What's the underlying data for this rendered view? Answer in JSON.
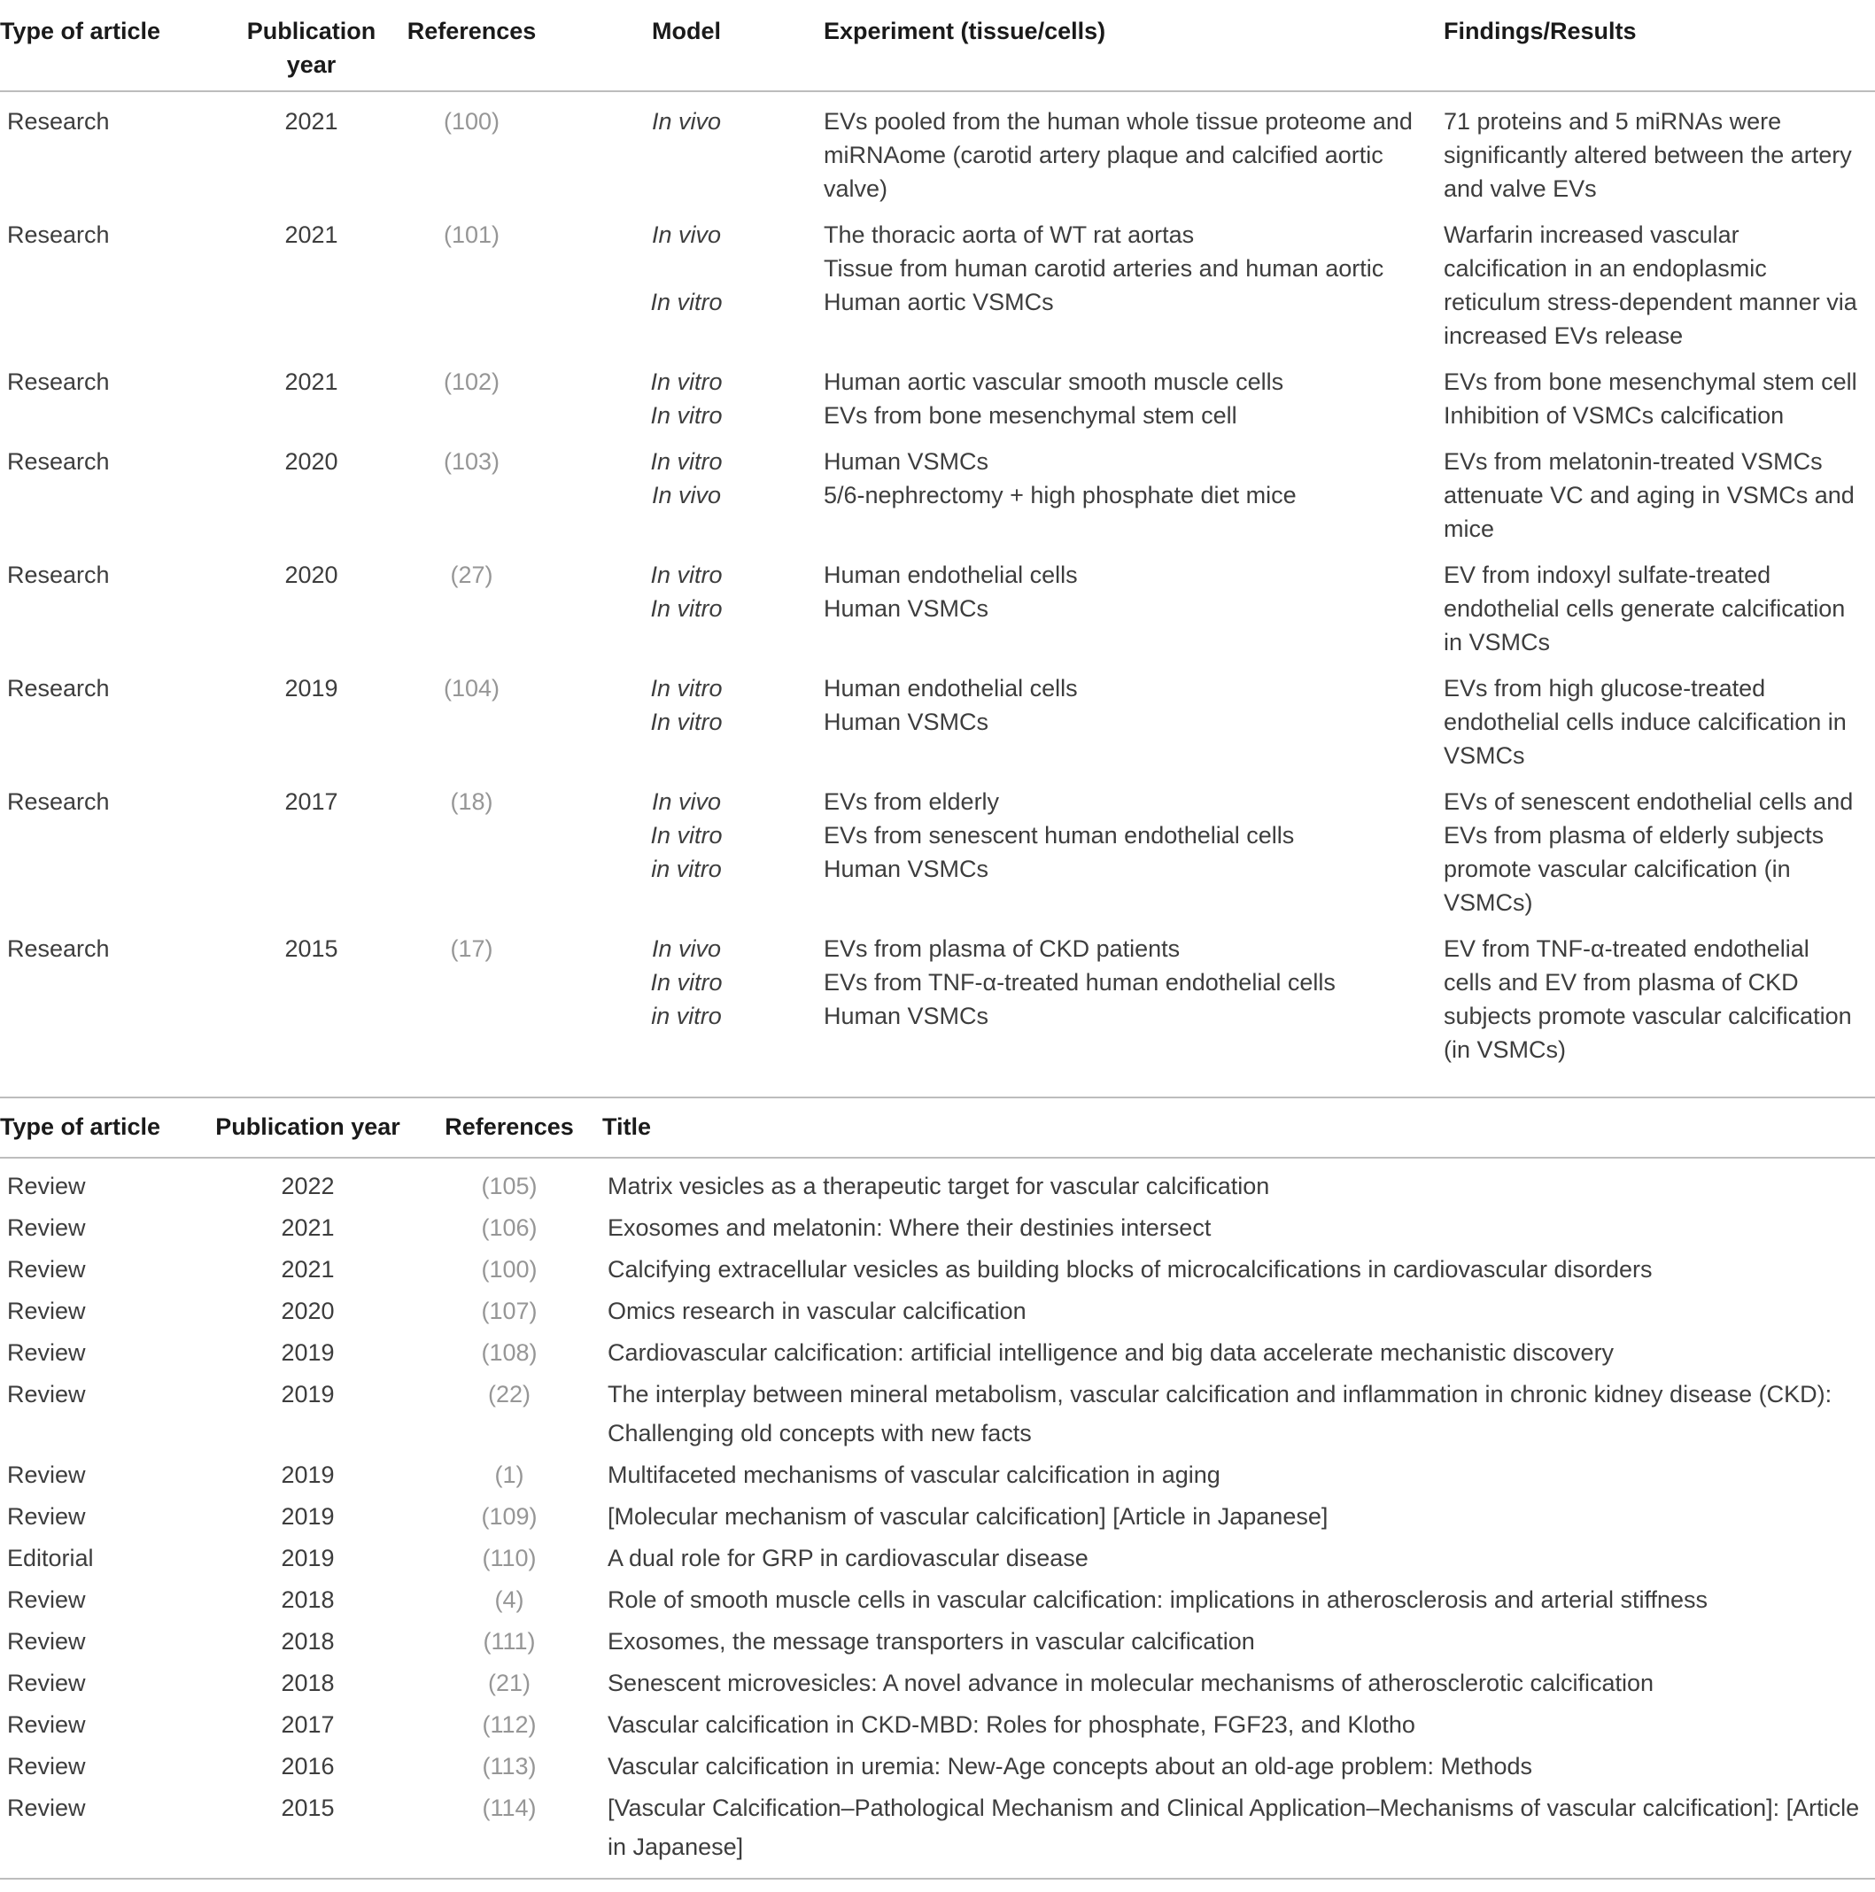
{
  "table1": {
    "headers": {
      "type": "Type of article",
      "year": "Publication year",
      "references": "References",
      "model": "Model",
      "experiment": "Experiment (tissue/cells)",
      "findings": "Findings/Results"
    },
    "rows": [
      {
        "type": "Research",
        "year": "2021",
        "references": "(100)",
        "model_lines": [
          "In vivo"
        ],
        "experiment_lines": [
          "EVs pooled from the human whole tissue proteome and miRNAome (carotid artery plaque and calcified aortic valve)"
        ],
        "findings_lines": [
          "71 proteins and 5 miRNAs were significantly altered between the artery and valve EVs"
        ]
      },
      {
        "type": "Research",
        "year": "2021",
        "references": "(101)",
        "model_lines": [
          "In vivo",
          "",
          "In vitro"
        ],
        "experiment_lines": [
          "The thoracic aorta of WT rat aortas",
          "Tissue from human carotid arteries and human aortic",
          "Human aortic VSMCs"
        ],
        "findings_lines": [
          "Warfarin increased vascular calcification in an endoplasmic reticulum stress-dependent manner via increased EVs release"
        ]
      },
      {
        "type": "Research",
        "year": "2021",
        "references": "(102)",
        "model_lines": [
          "In vitro",
          "In vitro"
        ],
        "experiment_lines": [
          "Human aortic vascular smooth muscle cells",
          "EVs from bone mesenchymal stem cell"
        ],
        "findings_lines": [
          "EVs from bone mesenchymal stem cell",
          "Inhibition of VSMCs calcification"
        ]
      },
      {
        "type": "Research",
        "year": "2020",
        "references": "(103)",
        "model_lines": [
          "In vitro",
          "In vivo"
        ],
        "experiment_lines": [
          "Human VSMCs",
          "5/6-nephrectomy + high phosphate diet mice"
        ],
        "findings_lines": [
          "EVs from melatonin-treated VSMCs attenuate VC and aging in VSMCs and mice"
        ]
      },
      {
        "type": "Research",
        "year": "2020",
        "references": "(27)",
        "model_lines": [
          "In vitro",
          "In vitro"
        ],
        "experiment_lines": [
          "Human endothelial cells",
          "Human VSMCs"
        ],
        "findings_lines": [
          "EV from indoxyl sulfate-treated endothelial cells generate calcification in VSMCs"
        ]
      },
      {
        "type": "Research",
        "year": "2019",
        "references": "(104)",
        "model_lines": [
          "In vitro",
          "In vitro"
        ],
        "experiment_lines": [
          "Human endothelial cells",
          "Human VSMCs"
        ],
        "findings_lines": [
          "EVs from high glucose-treated endothelial cells induce calcification in VSMCs"
        ]
      },
      {
        "type": "Research",
        "year": "2017",
        "references": "(18)",
        "model_lines": [
          "In vivo",
          "In vitro",
          "in vitro"
        ],
        "experiment_lines": [
          "EVs from elderly",
          "EVs from senescent human endothelial cells",
          "Human VSMCs"
        ],
        "findings_lines": [
          "EVs of senescent endothelial cells and EVs from plasma of elderly subjects promote vascular calcification (in VSMCs)"
        ]
      },
      {
        "type": "Research",
        "year": "2015",
        "references": "(17)",
        "model_lines": [
          "In vivo",
          "In vitro",
          "in vitro"
        ],
        "experiment_lines": [
          "EVs from plasma of CKD patients",
          "EVs from TNF-α-treated human endothelial cells",
          "Human VSMCs"
        ],
        "findings_lines": [
          "EV from TNF-α-treated endothelial cells and EV from plasma of CKD subjects promote vascular calcification (in VSMCs)"
        ]
      }
    ]
  },
  "table2": {
    "headers": {
      "type": "Type of article",
      "year": "Publication year",
      "references": "References",
      "title": "Title"
    },
    "rows": [
      {
        "type": "Review",
        "year": "2022",
        "references": "(105)",
        "title": "Matrix vesicles as a therapeutic target for vascular calcification"
      },
      {
        "type": "Review",
        "year": "2021",
        "references": "(106)",
        "title": "Exosomes and melatonin: Where their destinies intersect"
      },
      {
        "type": "Review",
        "year": "2021",
        "references": "(100)",
        "title": "Calcifying extracellular vesicles as building blocks of microcalcifications in cardiovascular disorders"
      },
      {
        "type": "Review",
        "year": "2020",
        "references": "(107)",
        "title": "Omics research in vascular calcification"
      },
      {
        "type": "Review",
        "year": "2019",
        "references": "(108)",
        "title": "Cardiovascular calcification: artificial intelligence and big data accelerate mechanistic discovery"
      },
      {
        "type": "Review",
        "year": "2019",
        "references": "(22)",
        "title": "The interplay between mineral metabolism, vascular calcification and inflammation in chronic kidney disease (CKD): Challenging old concepts with new facts"
      },
      {
        "type": "Review",
        "year": "2019",
        "references": "(1)",
        "title": "Multifaceted mechanisms of vascular calcification in aging"
      },
      {
        "type": "Review",
        "year": "2019",
        "references": "(109)",
        "title": "[Molecular mechanism of vascular calcification] [Article in Japanese]"
      },
      {
        "type": "Editorial",
        "year": "2019",
        "references": "(110)",
        "title": "A dual role for GRP in cardiovascular disease"
      },
      {
        "type": "Review",
        "year": "2018",
        "references": "(4)",
        "title": "Role of smooth muscle cells in vascular calcification: implications in atherosclerosis and arterial stiffness"
      },
      {
        "type": "Review",
        "year": "2018",
        "references": "(111)",
        "title": "Exosomes, the message transporters in vascular calcification"
      },
      {
        "type": "Review",
        "year": "2018",
        "references": "(21)",
        "title": "Senescent microvesicles: A novel advance in molecular mechanisms of atherosclerotic calcification"
      },
      {
        "type": "Review",
        "year": "2017",
        "references": "(112)",
        "title": "Vascular calcification in CKD-MBD: Roles for phosphate, FGF23, and Klotho"
      },
      {
        "type": "Review",
        "year": "2016",
        "references": "(113)",
        "title": "Vascular calcification in uremia: New-Age concepts about an old-age problem: Methods"
      },
      {
        "type": "Review",
        "year": "2015",
        "references": "(114)",
        "title": "[Vascular Calcification–Pathological Mechanism and Clinical Application–Mechanisms of vascular calcification]: [Article in Japanese]"
      }
    ]
  },
  "colors": {
    "header_text": "#1a1a1a",
    "body_text": "#3d3d3d",
    "reference_text": "#969696",
    "rule": "#bdbdbd"
  }
}
